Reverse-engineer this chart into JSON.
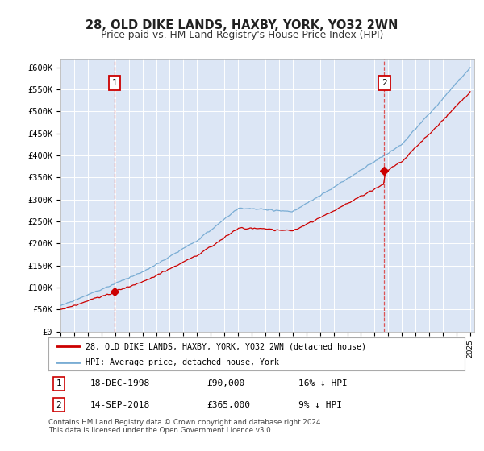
{
  "title": "28, OLD DIKE LANDS, HAXBY, YORK, YO32 2WN",
  "subtitle": "Price paid vs. HM Land Registry's House Price Index (HPI)",
  "ylim": [
    0,
    620000
  ],
  "yticks": [
    0,
    50000,
    100000,
    150000,
    200000,
    250000,
    300000,
    350000,
    400000,
    450000,
    500000,
    550000,
    600000
  ],
  "ytick_labels": [
    "£0",
    "£50K",
    "£100K",
    "£150K",
    "£200K",
    "£250K",
    "£300K",
    "£350K",
    "£400K",
    "£450K",
    "£500K",
    "£550K",
    "£600K"
  ],
  "plot_bg_color": "#dce6f5",
  "transaction1_date": "18-DEC-1998",
  "transaction1_price": 90000,
  "transaction1_pct": "16%",
  "transaction1_year": 1998.96,
  "transaction2_date": "14-SEP-2018",
  "transaction2_price": 365000,
  "transaction2_pct": "9%",
  "transaction2_year": 2018.71,
  "red_line_color": "#cc0000",
  "blue_line_color": "#7aadd4",
  "footer_text": "Contains HM Land Registry data © Crown copyright and database right 2024.\nThis data is licensed under the Open Government Licence v3.0.",
  "legend_label_red": "28, OLD DIKE LANDS, HAXBY, YORK, YO32 2WN (detached house)",
  "legend_label_blue": "HPI: Average price, detached house, York"
}
